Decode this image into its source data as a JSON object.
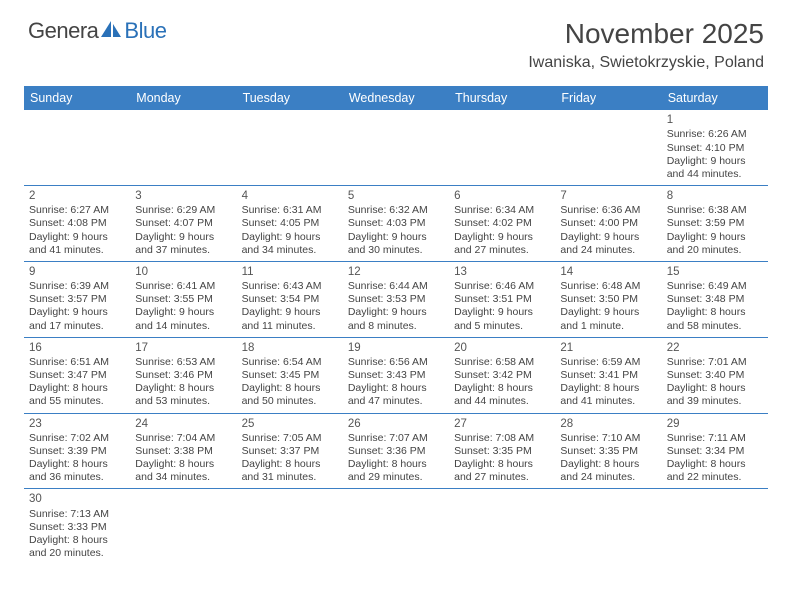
{
  "logo": {
    "text1": "Genera",
    "text2": "Blue"
  },
  "title": "November 2025",
  "location": "Iwaniska, Swietokrzyskie, Poland",
  "header_bg": "#3b7fc4",
  "header_text_color": "#ffffff",
  "divider_color": "#3b7fc4",
  "body_text_color": "#444444",
  "font_family": "Arial",
  "days": [
    "Sunday",
    "Monday",
    "Tuesday",
    "Wednesday",
    "Thursday",
    "Friday",
    "Saturday"
  ],
  "weeks": [
    [
      null,
      null,
      null,
      null,
      null,
      null,
      {
        "n": "1",
        "sr": "6:26 AM",
        "ss": "4:10 PM",
        "dl": "9 hours and 44 minutes."
      }
    ],
    [
      {
        "n": "2",
        "sr": "6:27 AM",
        "ss": "4:08 PM",
        "dl": "9 hours and 41 minutes."
      },
      {
        "n": "3",
        "sr": "6:29 AM",
        "ss": "4:07 PM",
        "dl": "9 hours and 37 minutes."
      },
      {
        "n": "4",
        "sr": "6:31 AM",
        "ss": "4:05 PM",
        "dl": "9 hours and 34 minutes."
      },
      {
        "n": "5",
        "sr": "6:32 AM",
        "ss": "4:03 PM",
        "dl": "9 hours and 30 minutes."
      },
      {
        "n": "6",
        "sr": "6:34 AM",
        "ss": "4:02 PM",
        "dl": "9 hours and 27 minutes."
      },
      {
        "n": "7",
        "sr": "6:36 AM",
        "ss": "4:00 PM",
        "dl": "9 hours and 24 minutes."
      },
      {
        "n": "8",
        "sr": "6:38 AM",
        "ss": "3:59 PM",
        "dl": "9 hours and 20 minutes."
      }
    ],
    [
      {
        "n": "9",
        "sr": "6:39 AM",
        "ss": "3:57 PM",
        "dl": "9 hours and 17 minutes."
      },
      {
        "n": "10",
        "sr": "6:41 AM",
        "ss": "3:55 PM",
        "dl": "9 hours and 14 minutes."
      },
      {
        "n": "11",
        "sr": "6:43 AM",
        "ss": "3:54 PM",
        "dl": "9 hours and 11 minutes."
      },
      {
        "n": "12",
        "sr": "6:44 AM",
        "ss": "3:53 PM",
        "dl": "9 hours and 8 minutes."
      },
      {
        "n": "13",
        "sr": "6:46 AM",
        "ss": "3:51 PM",
        "dl": "9 hours and 5 minutes."
      },
      {
        "n": "14",
        "sr": "6:48 AM",
        "ss": "3:50 PM",
        "dl": "9 hours and 1 minute."
      },
      {
        "n": "15",
        "sr": "6:49 AM",
        "ss": "3:48 PM",
        "dl": "8 hours and 58 minutes."
      }
    ],
    [
      {
        "n": "16",
        "sr": "6:51 AM",
        "ss": "3:47 PM",
        "dl": "8 hours and 55 minutes."
      },
      {
        "n": "17",
        "sr": "6:53 AM",
        "ss": "3:46 PM",
        "dl": "8 hours and 53 minutes."
      },
      {
        "n": "18",
        "sr": "6:54 AM",
        "ss": "3:45 PM",
        "dl": "8 hours and 50 minutes."
      },
      {
        "n": "19",
        "sr": "6:56 AM",
        "ss": "3:43 PM",
        "dl": "8 hours and 47 minutes."
      },
      {
        "n": "20",
        "sr": "6:58 AM",
        "ss": "3:42 PM",
        "dl": "8 hours and 44 minutes."
      },
      {
        "n": "21",
        "sr": "6:59 AM",
        "ss": "3:41 PM",
        "dl": "8 hours and 41 minutes."
      },
      {
        "n": "22",
        "sr": "7:01 AM",
        "ss": "3:40 PM",
        "dl": "8 hours and 39 minutes."
      }
    ],
    [
      {
        "n": "23",
        "sr": "7:02 AM",
        "ss": "3:39 PM",
        "dl": "8 hours and 36 minutes."
      },
      {
        "n": "24",
        "sr": "7:04 AM",
        "ss": "3:38 PM",
        "dl": "8 hours and 34 minutes."
      },
      {
        "n": "25",
        "sr": "7:05 AM",
        "ss": "3:37 PM",
        "dl": "8 hours and 31 minutes."
      },
      {
        "n": "26",
        "sr": "7:07 AM",
        "ss": "3:36 PM",
        "dl": "8 hours and 29 minutes."
      },
      {
        "n": "27",
        "sr": "7:08 AM",
        "ss": "3:35 PM",
        "dl": "8 hours and 27 minutes."
      },
      {
        "n": "28",
        "sr": "7:10 AM",
        "ss": "3:35 PM",
        "dl": "8 hours and 24 minutes."
      },
      {
        "n": "29",
        "sr": "7:11 AM",
        "ss": "3:34 PM",
        "dl": "8 hours and 22 minutes."
      }
    ],
    [
      {
        "n": "30",
        "sr": "7:13 AM",
        "ss": "3:33 PM",
        "dl": "8 hours and 20 minutes."
      },
      null,
      null,
      null,
      null,
      null,
      null
    ]
  ],
  "labels": {
    "sunrise": "Sunrise:",
    "sunset": "Sunset:",
    "daylight": "Daylight:"
  }
}
